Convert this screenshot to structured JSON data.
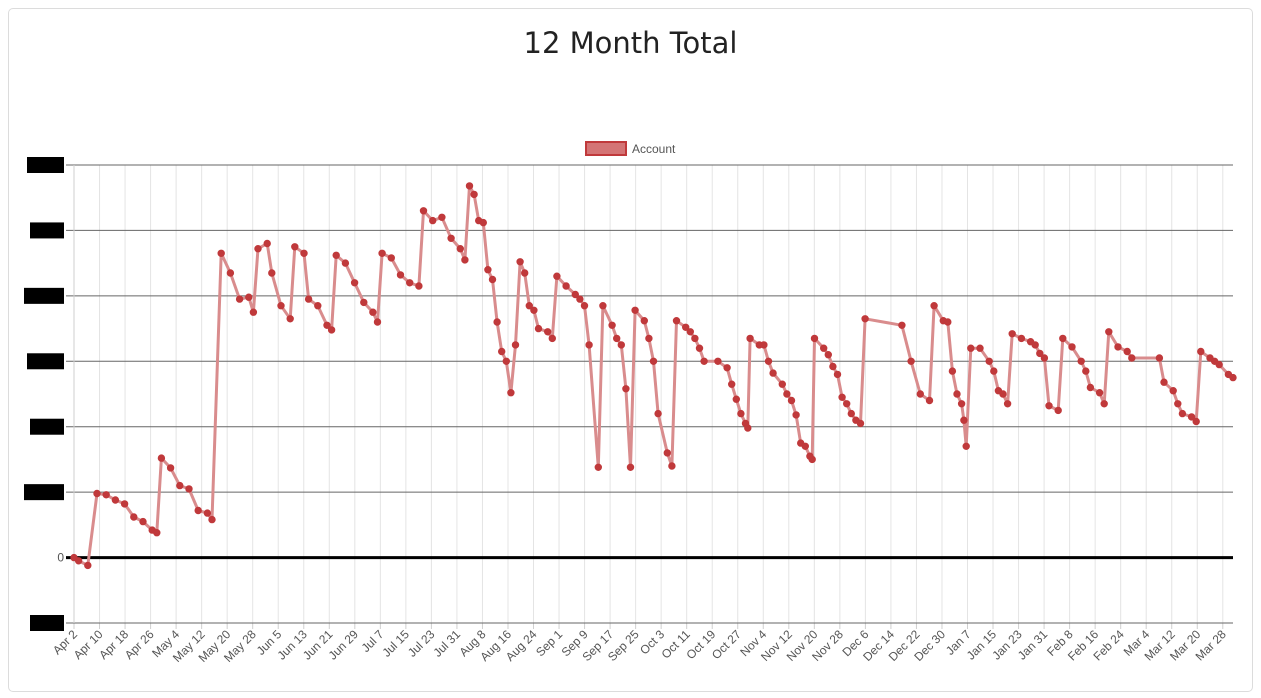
{
  "chart_data": {
    "type": "line",
    "title": "12 Month Total",
    "legend": {
      "position": "top",
      "entries": [
        "Account"
      ]
    },
    "series": [
      {
        "name": "Account",
        "color": "#c0393b",
        "line_color": "#d98c8d",
        "points": [
          [
            0,
            0.0
          ],
          [
            1,
            -0.05
          ],
          [
            3,
            -0.12
          ],
          [
            5,
            0.98
          ],
          [
            7,
            0.96
          ],
          [
            9,
            0.88
          ],
          [
            11,
            0.82
          ],
          [
            13,
            0.62
          ],
          [
            15,
            0.55
          ],
          [
            17,
            0.42
          ],
          [
            18,
            0.38
          ],
          [
            19,
            1.52
          ],
          [
            21,
            1.37
          ],
          [
            23,
            1.1
          ],
          [
            25,
            1.05
          ],
          [
            27,
            0.72
          ],
          [
            29,
            0.68
          ],
          [
            30,
            0.58
          ],
          [
            32,
            4.65
          ],
          [
            34,
            4.35
          ],
          [
            36,
            3.95
          ],
          [
            38,
            3.98
          ],
          [
            39,
            3.75
          ],
          [
            40,
            4.72
          ],
          [
            42,
            4.8
          ],
          [
            43,
            4.35
          ],
          [
            45,
            3.85
          ],
          [
            47,
            3.65
          ],
          [
            48,
            4.75
          ],
          [
            50,
            4.65
          ],
          [
            51,
            3.95
          ],
          [
            53,
            3.85
          ],
          [
            55,
            3.55
          ],
          [
            56,
            3.48
          ],
          [
            57,
            4.62
          ],
          [
            59,
            4.5
          ],
          [
            61,
            4.2
          ],
          [
            63,
            3.9
          ],
          [
            65,
            3.75
          ],
          [
            66,
            3.6
          ],
          [
            67,
            4.65
          ],
          [
            69,
            4.58
          ],
          [
            71,
            4.32
          ],
          [
            73,
            4.2
          ],
          [
            75,
            4.15
          ],
          [
            76,
            5.3
          ],
          [
            78,
            5.15
          ],
          [
            80,
            5.2
          ],
          [
            82,
            4.88
          ],
          [
            84,
            4.72
          ],
          [
            85,
            4.55
          ],
          [
            86,
            5.68
          ],
          [
            87,
            5.55
          ],
          [
            88,
            5.15
          ],
          [
            89,
            5.12
          ],
          [
            90,
            4.4
          ],
          [
            91,
            4.25
          ],
          [
            92,
            3.6
          ],
          [
            93,
            3.15
          ],
          [
            94,
            3.0
          ],
          [
            95,
            2.52
          ],
          [
            96,
            3.25
          ],
          [
            97,
            4.52
          ],
          [
            98,
            4.35
          ],
          [
            99,
            3.85
          ],
          [
            100,
            3.78
          ],
          [
            101,
            3.5
          ],
          [
            103,
            3.45
          ],
          [
            104,
            3.35
          ],
          [
            105,
            4.3
          ],
          [
            107,
            4.15
          ],
          [
            109,
            4.02
          ],
          [
            110,
            3.95
          ],
          [
            111,
            3.85
          ],
          [
            112,
            3.25
          ],
          [
            114,
            1.38
          ],
          [
            115,
            3.85
          ],
          [
            117,
            3.55
          ],
          [
            118,
            3.35
          ],
          [
            119,
            3.25
          ],
          [
            120,
            2.58
          ],
          [
            121,
            1.38
          ],
          [
            122,
            3.78
          ],
          [
            124,
            3.62
          ],
          [
            125,
            3.35
          ],
          [
            126,
            3.0
          ],
          [
            127,
            2.2
          ],
          [
            129,
            1.6
          ],
          [
            130,
            1.4
          ],
          [
            131,
            3.62
          ],
          [
            133,
            3.52
          ],
          [
            134,
            3.45
          ],
          [
            135,
            3.35
          ],
          [
            136,
            3.2
          ],
          [
            137,
            3.0
          ],
          [
            140,
            3.0
          ],
          [
            142,
            2.9
          ],
          [
            143,
            2.65
          ],
          [
            144,
            2.42
          ],
          [
            145,
            2.2
          ],
          [
            146,
            2.05
          ],
          [
            146.5,
            1.98
          ],
          [
            147,
            3.35
          ],
          [
            149,
            3.25
          ],
          [
            150,
            3.25
          ],
          [
            151,
            3.0
          ],
          [
            152,
            2.82
          ],
          [
            154,
            2.65
          ],
          [
            155,
            2.5
          ],
          [
            156,
            2.4
          ],
          [
            157,
            2.18
          ],
          [
            158,
            1.75
          ],
          [
            159,
            1.7
          ],
          [
            160,
            1.55
          ],
          [
            160.5,
            1.5
          ],
          [
            161,
            3.35
          ],
          [
            163,
            3.2
          ],
          [
            164,
            3.1
          ],
          [
            165,
            2.92
          ],
          [
            166,
            2.8
          ],
          [
            167,
            2.45
          ],
          [
            168,
            2.35
          ],
          [
            169,
            2.2
          ],
          [
            170,
            2.1
          ],
          [
            171,
            2.05
          ],
          [
            172,
            3.65
          ],
          [
            180,
            3.55
          ],
          [
            182,
            3.0
          ],
          [
            184,
            2.5
          ],
          [
            186,
            2.4
          ],
          [
            187,
            3.85
          ],
          [
            189,
            3.62
          ],
          [
            190,
            3.6
          ],
          [
            191,
            2.85
          ],
          [
            192,
            2.5
          ],
          [
            193,
            2.35
          ],
          [
            193.5,
            2.1
          ],
          [
            194,
            1.7
          ],
          [
            195,
            3.2
          ],
          [
            197,
            3.2
          ],
          [
            199,
            3.0
          ],
          [
            200,
            2.85
          ],
          [
            201,
            2.55
          ],
          [
            202,
            2.5
          ],
          [
            203,
            2.35
          ],
          [
            204,
            3.42
          ],
          [
            206,
            3.35
          ],
          [
            208,
            3.3
          ],
          [
            209,
            3.25
          ],
          [
            210,
            3.12
          ],
          [
            211,
            3.05
          ],
          [
            212,
            2.32
          ],
          [
            214,
            2.25
          ],
          [
            215,
            3.35
          ],
          [
            217,
            3.22
          ],
          [
            219,
            3.0
          ],
          [
            220,
            2.85
          ],
          [
            221,
            2.6
          ],
          [
            223,
            2.52
          ],
          [
            224,
            2.35
          ],
          [
            225,
            3.45
          ],
          [
            227,
            3.22
          ],
          [
            229,
            3.15
          ],
          [
            230,
            3.05
          ],
          [
            236,
            3.05
          ],
          [
            237,
            2.68
          ],
          [
            239,
            2.55
          ],
          [
            240,
            2.35
          ],
          [
            241,
            2.2
          ],
          [
            243,
            2.15
          ],
          [
            244,
            2.08
          ],
          [
            245,
            3.15
          ],
          [
            247,
            3.05
          ],
          [
            248,
            3.0
          ],
          [
            249,
            2.95
          ],
          [
            251,
            2.8
          ],
          [
            252,
            2.75
          ]
        ]
      }
    ],
    "x_axis": {
      "tick_labels": [
        "Apr 2",
        "Apr 10",
        "Apr 18",
        "Apr 26",
        "May 4",
        "May 12",
        "May 20",
        "May 28",
        "Jun 5",
        "Jun 13",
        "Jun 21",
        "Jun 29",
        "Jul 7",
        "Jul 15",
        "Jul 23",
        "Jul 31",
        "Aug 8",
        "Aug 16",
        "Aug 24",
        "Sep 1",
        "Sep 9",
        "Sep 17",
        "Sep 25",
        "Oct 3",
        "Oct 11",
        "Oct 19",
        "Oct 27",
        "Nov 4",
        "Nov 12",
        "Nov 20",
        "Nov 28",
        "Dec 6",
        "Dec 14",
        "Dec 22",
        "Dec 30",
        "Jan 7",
        "Jan 15",
        "Jan 23",
        "Jan 31",
        "Feb 8",
        "Feb 16",
        "Feb 24",
        "Mar 4",
        "Mar 12",
        "Mar 20",
        "Mar 28"
      ],
      "range": [
        0,
        252
      ]
    },
    "y_axis": {
      "range": [
        -1,
        6
      ],
      "gridlines": [
        -1,
        0,
        1,
        2,
        3,
        4,
        5,
        6
      ],
      "tick_labels": [
        "",
        "0",
        "",
        "",
        "",
        "",
        "",
        ""
      ],
      "redacted_labels": true
    },
    "grid": true
  }
}
